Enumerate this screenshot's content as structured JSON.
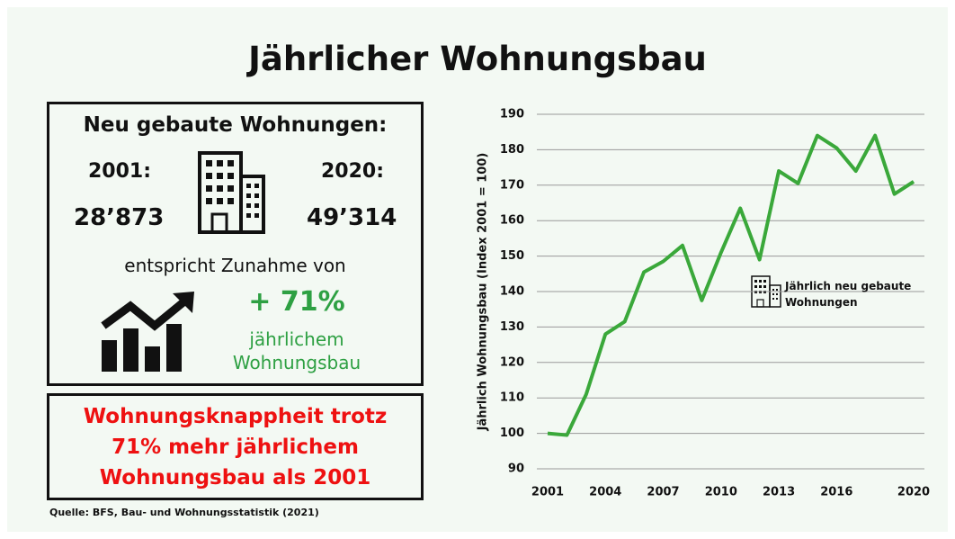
{
  "title": "Jährlicher Wohnungsbau",
  "panel": {
    "heading": "Neu gebaute Wohnungen:",
    "start_year": "2001:",
    "start_value": "28’873",
    "end_year": "2020:",
    "end_value": "49’314",
    "text": "entspricht Zunahme von",
    "increase": "+ 71%",
    "increase_note": "jährlichem Wohnungsbau"
  },
  "callout": "Wohnungsknappheit trotz 71% mehr jährlichem Wohnungsbau als 2001",
  "source": "Quelle: BFS, Bau- und Wohnungsstatistik (2021)",
  "chart_data": {
    "type": "line",
    "y_label": "Jährlich Wohnungsbau (Index 2001 = 100)",
    "x": [
      2001,
      2002,
      2003,
      2004,
      2005,
      2006,
      2007,
      2008,
      2009,
      2010,
      2011,
      2012,
      2013,
      2014,
      2015,
      2016,
      2017,
      2018,
      2019,
      2020
    ],
    "series": [
      {
        "name": "Jährlich neu gebaute Wohnungen",
        "color": "#3aa83a",
        "values": [
          100,
          99.5,
          111,
          128,
          131.5,
          145.5,
          148.5,
          153,
          137.5,
          151,
          163.5,
          149,
          174,
          170.5,
          184,
          180.5,
          174,
          184,
          167.5,
          171
        ]
      }
    ],
    "xlim": [
      2001,
      2020
    ],
    "ylim": [
      90,
      190
    ],
    "xticks": [
      2001,
      2004,
      2007,
      2010,
      2013,
      2016,
      2020
    ],
    "yticks": [
      90,
      100,
      110,
      120,
      130,
      140,
      150,
      160,
      170,
      180,
      190
    ],
    "grid": true
  }
}
